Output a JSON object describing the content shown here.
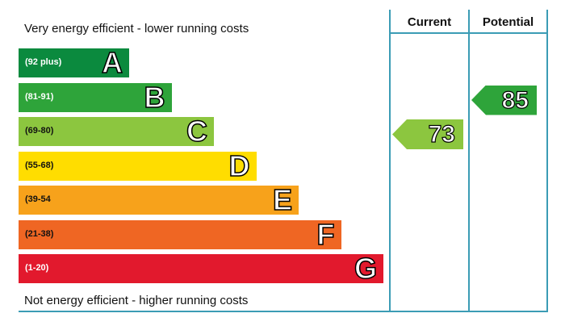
{
  "captions": {
    "top": "Very energy efficient - lower running costs",
    "bottom": "Not energy efficient - higher running costs"
  },
  "columns": {
    "current": "Current",
    "potential": "Potential"
  },
  "chart_data": {
    "type": "bar",
    "categories": [
      "A",
      "B",
      "C",
      "D",
      "E",
      "F",
      "G"
    ],
    "ranges": [
      "(92 plus)",
      "(81-91)",
      "(69-80)",
      "(55-68)",
      "(39-54",
      "(21-38)",
      "(1-20)"
    ],
    "colors": [
      "#0b8a3e",
      "#2ea43a",
      "#8cc63f",
      "#ffdd00",
      "#f7a21b",
      "#ef6623",
      "#e2192d"
    ],
    "range_text_colors": [
      "#ffffff",
      "#ffffff",
      "#111111",
      "#111111",
      "#111111",
      "#111111",
      "#ffffff"
    ],
    "current": {
      "value": 73,
      "band": "C",
      "color": "#8cc63f"
    },
    "potential": {
      "value": 85,
      "band": "B",
      "color": "#2ea43a"
    }
  }
}
